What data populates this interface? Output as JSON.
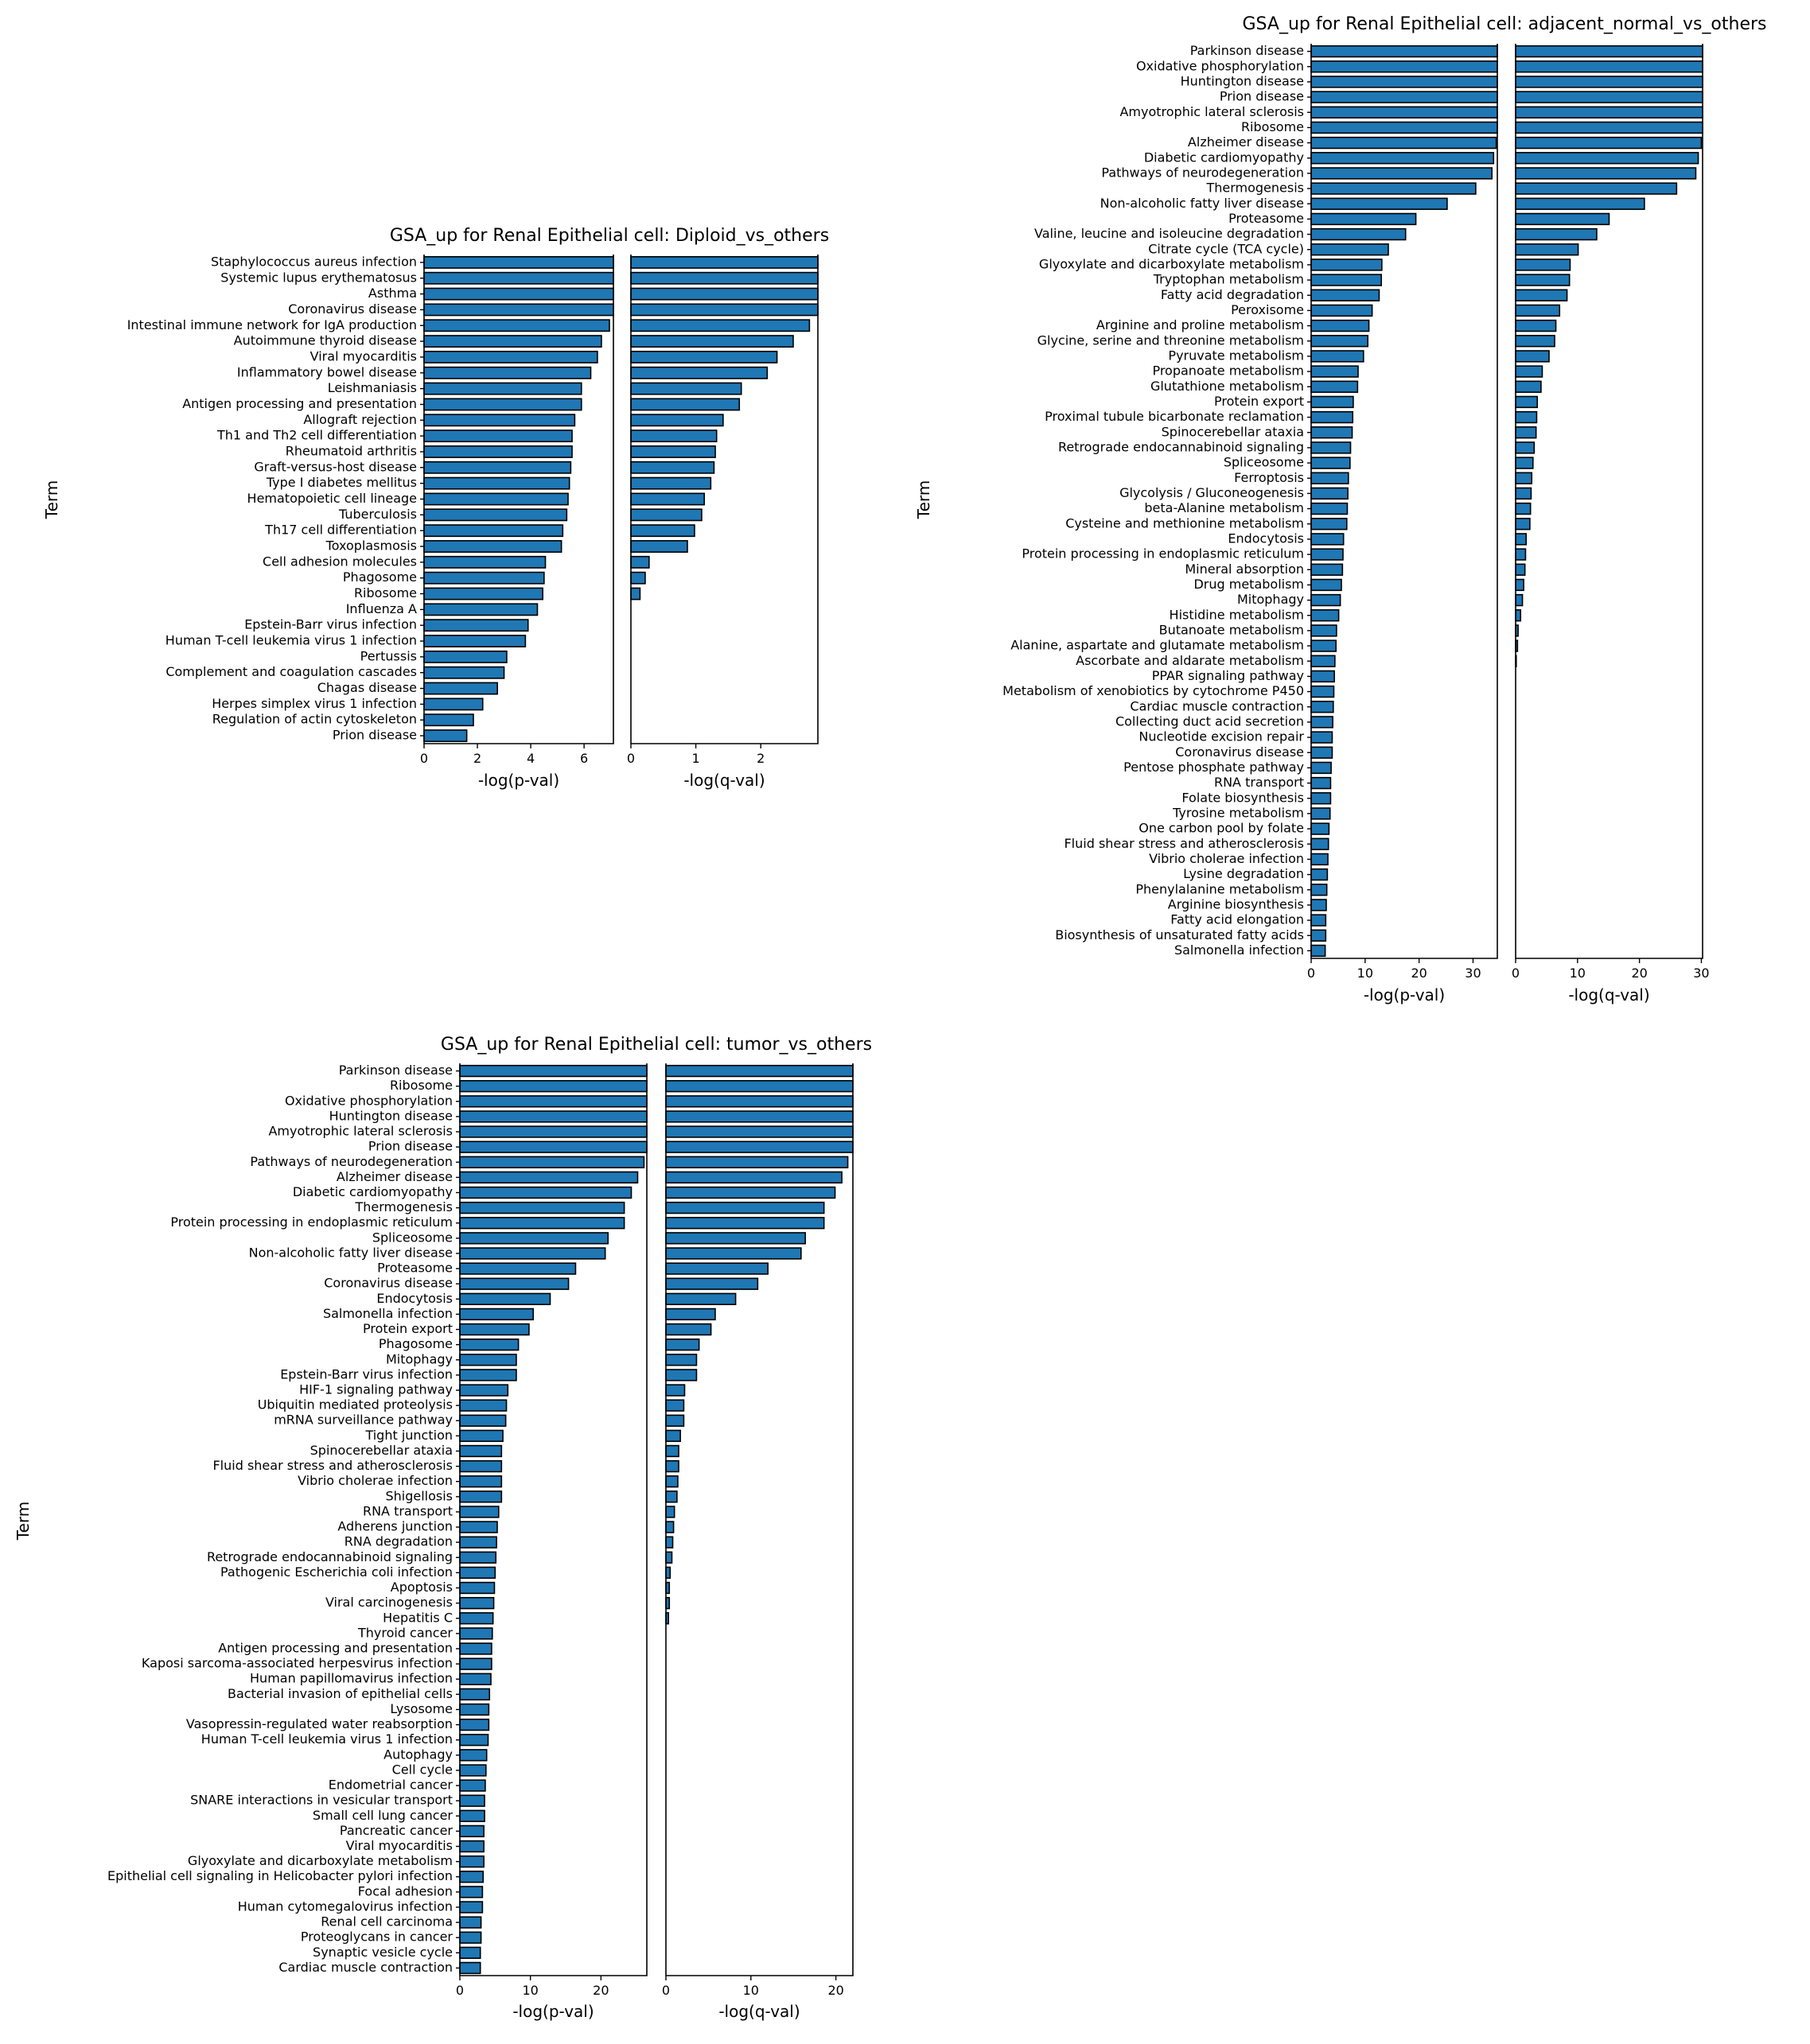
{
  "colors": {
    "bar": "#1f77b4",
    "edge": "#000000"
  },
  "chart_data": [
    {
      "type": "bar",
      "orientation": "horizontal",
      "title": "GSA_up for Renal Epithelial cell: Diploid_vs_others",
      "ylabel": "Term",
      "categories": [
        "Staphylococcus aureus infection",
        "Systemic lupus erythematosus",
        "Asthma",
        "Coronavirus disease",
        "Intestinal immune network for IgA production",
        "Autoimmune thyroid disease",
        "Viral myocarditis",
        "Inflammatory bowel disease",
        "Leishmaniasis",
        "Antigen processing and presentation",
        "Allograft rejection",
        "Th1 and Th2 cell differentiation",
        "Rheumatoid arthritis",
        "Graft-versus-host disease",
        "Type I diabetes mellitus",
        "Hematopoietic cell lineage",
        "Tuberculosis",
        "Th17 cell differentiation",
        "Toxoplasmosis",
        "Cell adhesion molecules",
        "Phagosome",
        "Ribosome",
        "Influenza A",
        "Epstein-Barr virus infection",
        "Human T-cell leukemia virus 1 infection",
        "Pertussis",
        "Complement and coagulation cascades",
        "Chagas disease",
        "Herpes simplex virus 1 infection",
        "Regulation of actin cytoskeleton",
        "Prion disease"
      ],
      "panels": [
        {
          "xlabel": "-log(p-val)",
          "xlim": [
            0,
            7.1
          ],
          "xticks": [
            0,
            2,
            4,
            6
          ],
          "values": [
            7.1,
            7.1,
            7.1,
            7.1,
            6.95,
            6.65,
            6.5,
            6.25,
            5.9,
            5.9,
            5.65,
            5.55,
            5.55,
            5.5,
            5.45,
            5.4,
            5.35,
            5.2,
            5.15,
            4.55,
            4.5,
            4.45,
            4.25,
            3.9,
            3.8,
            3.1,
            3.0,
            2.75,
            2.2,
            1.85,
            1.6
          ]
        },
        {
          "xlabel": "-log(q-val)",
          "xlim": [
            0,
            2.88
          ],
          "xticks": [
            0,
            1,
            2
          ],
          "values": [
            2.88,
            2.88,
            2.88,
            2.88,
            2.75,
            2.5,
            2.25,
            2.1,
            1.7,
            1.67,
            1.42,
            1.32,
            1.3,
            1.28,
            1.23,
            1.13,
            1.09,
            0.98,
            0.87,
            0.28,
            0.22,
            0.14,
            0,
            0,
            0,
            0,
            0,
            0,
            0,
            0,
            0
          ]
        }
      ]
    },
    {
      "type": "bar",
      "orientation": "horizontal",
      "title": "GSA_up for Renal Epithelial cell: adjacent_normal_vs_others",
      "ylabel": "Term",
      "categories": [
        "Parkinson disease",
        "Oxidative phosphorylation",
        "Huntington disease",
        "Prion disease",
        "Amyotrophic lateral sclerosis",
        "Ribosome",
        "Alzheimer disease",
        "Diabetic cardiomyopathy",
        "Pathways of neurodegeneration",
        "Thermogenesis",
        "Non-alcoholic fatty liver disease",
        "Proteasome",
        "Valine, leucine and isoleucine degradation",
        "Citrate cycle (TCA cycle)",
        "Glyoxylate and dicarboxylate metabolism",
        "Tryptophan metabolism",
        "Fatty acid degradation",
        "Peroxisome",
        "Arginine and proline metabolism",
        "Glycine, serine and threonine metabolism",
        "Pyruvate metabolism",
        "Propanoate metabolism",
        "Glutathione metabolism",
        "Protein export",
        "Proximal tubule bicarbonate reclamation",
        "Spinocerebellar ataxia",
        "Retrograde endocannabinoid signaling",
        "Spliceosome",
        "Ferroptosis",
        "Glycolysis / Gluconeogenesis",
        "beta-Alanine metabolism",
        "Cysteine and methionine metabolism",
        "Endocytosis",
        "Protein processing in endoplasmic reticulum",
        "Mineral absorption",
        "Drug metabolism",
        "Mitophagy",
        "Histidine metabolism",
        "Butanoate metabolism",
        "Alanine, aspartate and glutamate metabolism",
        "Ascorbate and aldarate metabolism",
        "PPAR signaling pathway",
        "Metabolism of xenobiotics by cytochrome P450",
        "Cardiac muscle contraction",
        "Collecting duct acid secretion",
        "Nucleotide excision repair",
        "Coronavirus disease",
        "Pentose phosphate pathway",
        "RNA transport",
        "Folate biosynthesis",
        "Tyrosine metabolism",
        "One carbon pool by folate",
        "Fluid shear stress and atherosclerosis",
        "Vibrio cholerae infection",
        "Lysine degradation",
        "Phenylalanine metabolism",
        "Arginine biosynthesis",
        "Fatty acid elongation",
        "Biosynthesis of unsaturated fatty acids",
        "Salmonella infection"
      ],
      "panels": [
        {
          "xlabel": "-log(p-val)",
          "xlim": [
            0,
            34.5
          ],
          "xticks": [
            0,
            10,
            20,
            30
          ],
          "values": [
            34.5,
            34.5,
            34.5,
            34.5,
            34.5,
            34.5,
            34.3,
            33.8,
            33.5,
            30.5,
            25.2,
            19.4,
            17.5,
            14.3,
            13.1,
            13.0,
            12.6,
            11.3,
            10.7,
            10.5,
            9.7,
            8.7,
            8.6,
            7.8,
            7.7,
            7.6,
            7.3,
            7.2,
            6.9,
            6.8,
            6.7,
            6.6,
            6.0,
            5.9,
            5.8,
            5.6,
            5.4,
            5.1,
            4.7,
            4.6,
            4.4,
            4.3,
            4.2,
            4.1,
            4.0,
            3.9,
            3.9,
            3.7,
            3.6,
            3.6,
            3.5,
            3.3,
            3.2,
            3.1,
            3.0,
            2.9,
            2.8,
            2.7,
            2.7,
            2.6
          ]
        },
        {
          "xlabel": "-log(q-val)",
          "xlim": [
            0,
            30.2
          ],
          "xticks": [
            0,
            10,
            20,
            30
          ],
          "values": [
            30.2,
            30.2,
            30.2,
            30.2,
            30.2,
            30.2,
            30.0,
            29.5,
            29.1,
            26.0,
            20.8,
            15.1,
            13.1,
            10.1,
            8.8,
            8.7,
            8.3,
            7.1,
            6.5,
            6.3,
            5.4,
            4.3,
            4.1,
            3.5,
            3.4,
            3.3,
            3.0,
            2.8,
            2.6,
            2.5,
            2.4,
            2.3,
            1.7,
            1.6,
            1.5,
            1.3,
            1.1,
            0.8,
            0.4,
            0.3,
            0.1,
            0,
            0,
            0,
            0,
            0,
            0,
            0,
            0,
            0,
            0,
            0,
            0,
            0,
            0,
            0,
            0,
            0,
            0,
            0
          ]
        }
      ]
    },
    {
      "type": "bar",
      "orientation": "horizontal",
      "title": "GSA_up for Renal Epithelial cell: tumor_vs_others",
      "ylabel": "Term",
      "categories": [
        "Parkinson disease",
        "Ribosome",
        "Oxidative phosphorylation",
        "Huntington disease",
        "Amyotrophic lateral sclerosis",
        "Prion disease",
        "Pathways of neurodegeneration",
        "Alzheimer disease",
        "Diabetic cardiomyopathy",
        "Thermogenesis",
        "Protein processing in endoplasmic reticulum",
        "Spliceosome",
        "Non-alcoholic fatty liver disease",
        "Proteasome",
        "Coronavirus disease",
        "Endocytosis",
        "Salmonella infection",
        "Protein export",
        "Phagosome",
        "Mitophagy",
        "Epstein-Barr virus infection",
        "HIF-1 signaling pathway",
        "Ubiquitin mediated proteolysis",
        "mRNA surveillance pathway",
        "Tight junction",
        "Spinocerebellar ataxia",
        "Fluid shear stress and atherosclerosis",
        "Vibrio cholerae infection",
        "Shigellosis",
        "RNA transport",
        "Adherens junction",
        "RNA degradation",
        "Retrograde endocannabinoid signaling",
        "Pathogenic Escherichia coli infection",
        "Apoptosis",
        "Viral carcinogenesis",
        "Hepatitis C",
        "Thyroid cancer",
        "Antigen processing and presentation",
        "Kaposi sarcoma-associated herpesvirus infection",
        "Human papillomavirus infection",
        "Bacterial invasion of epithelial cells",
        "Lysosome",
        "Vasopressin-regulated water reabsorption",
        "Human T-cell leukemia virus 1 infection",
        "Autophagy",
        "Cell cycle",
        "Endometrial cancer",
        "SNARE interactions in vesicular transport",
        "Small cell lung cancer",
        "Pancreatic cancer",
        "Viral myocarditis",
        "Glyoxylate and dicarboxylate metabolism",
        "Epithelial cell signaling in Helicobacter pylori infection",
        "Focal adhesion",
        "Human cytomegalovirus infection",
        "Renal cell carcinoma",
        "Proteoglycans in cancer",
        "Synaptic vesicle cycle",
        "Cardiac muscle contraction"
      ],
      "panels": [
        {
          "xlabel": "-log(p-val)",
          "xlim": [
            0,
            26.5
          ],
          "xticks": [
            0,
            10,
            20
          ],
          "values": [
            26.5,
            26.5,
            26.5,
            26.5,
            26.5,
            26.5,
            26.1,
            25.2,
            24.3,
            23.3,
            23.3,
            21.0,
            20.6,
            16.4,
            15.4,
            12.8,
            10.4,
            9.8,
            8.3,
            8.0,
            8.0,
            6.8,
            6.6,
            6.5,
            6.1,
            5.9,
            5.9,
            5.9,
            5.9,
            5.5,
            5.3,
            5.2,
            5.1,
            5.0,
            4.9,
            4.8,
            4.7,
            4.6,
            4.5,
            4.5,
            4.4,
            4.2,
            4.1,
            4.1,
            4.0,
            3.8,
            3.7,
            3.6,
            3.5,
            3.5,
            3.4,
            3.4,
            3.4,
            3.3,
            3.2,
            3.2,
            3.0,
            3.0,
            2.9,
            2.9
          ]
        },
        {
          "xlabel": "-log(q-val)",
          "xlim": [
            0,
            22.0
          ],
          "xticks": [
            0,
            10,
            20
          ],
          "values": [
            22.0,
            22.0,
            22.0,
            22.0,
            22.0,
            22.0,
            21.4,
            20.7,
            19.9,
            18.6,
            18.6,
            16.4,
            15.9,
            12.0,
            10.8,
            8.2,
            5.8,
            5.3,
            3.9,
            3.6,
            3.6,
            2.2,
            2.1,
            2.1,
            1.7,
            1.5,
            1.5,
            1.4,
            1.3,
            1.0,
            0.9,
            0.8,
            0.7,
            0.5,
            0.4,
            0.4,
            0.3,
            0,
            0,
            0,
            0,
            0,
            0,
            0,
            0,
            0,
            0,
            0,
            0,
            0,
            0,
            0,
            0,
            0,
            0,
            0,
            0,
            0,
            0,
            0
          ]
        }
      ]
    }
  ]
}
